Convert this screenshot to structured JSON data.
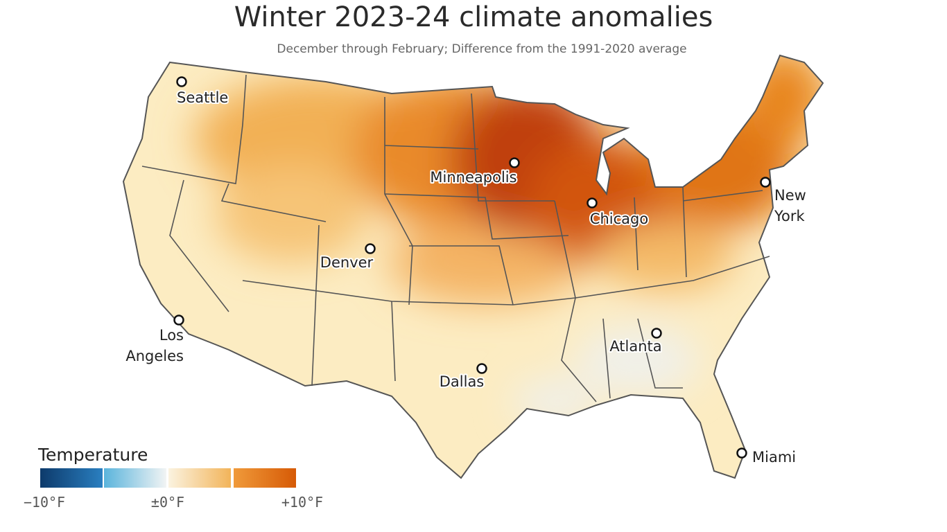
{
  "header": {
    "title": "Winter 2023-24 climate anomalies",
    "subtitle": "December through February; Difference from the 1991-2020 average"
  },
  "cities": [
    "Seattle",
    "Minneapolis",
    "Chicago",
    "New York",
    "Denver",
    "Los Angeles",
    "Atlanta",
    "Dallas",
    "Miami"
  ],
  "legend": {
    "title": "Temperature",
    "ticks": [
      "−10°F",
      "±0°F",
      "+10°F"
    ]
  }
}
